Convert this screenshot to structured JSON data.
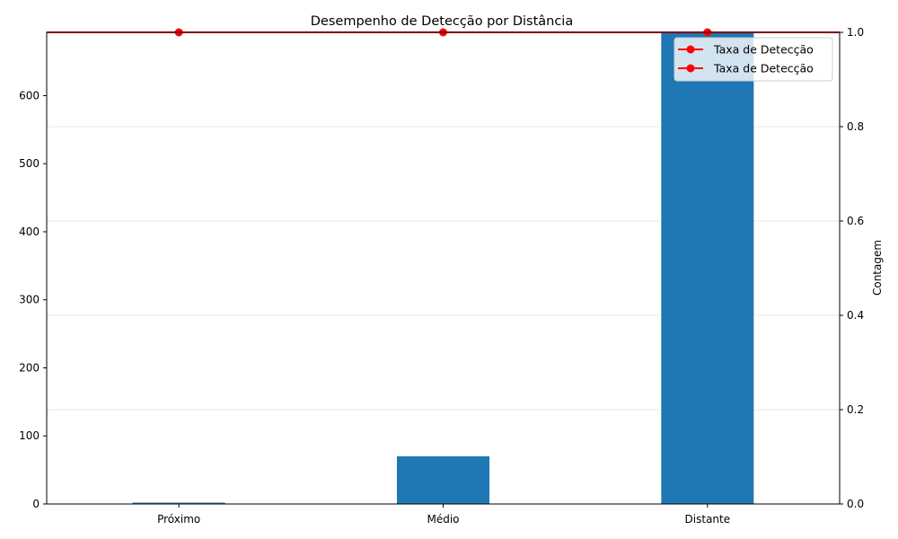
{
  "chart_data": {
    "type": "bar",
    "title": "Desempenho de Detecção por Distância",
    "categories": [
      "Próximo",
      "Médio",
      "Distante"
    ],
    "bar_series": {
      "values": [
        2,
        70,
        693
      ],
      "color": "#1f77b4"
    },
    "line_series": {
      "name": "Taxa de Detecção",
      "values": [
        1.0,
        1.0,
        1.0
      ],
      "color": "#ff0000"
    },
    "left_axis": {
      "label": "",
      "lim": [
        0,
        693
      ],
      "ticks": [
        0,
        100,
        200,
        300,
        400,
        500,
        600
      ]
    },
    "right_axis": {
      "label": "Contagem",
      "lim": [
        0.0,
        1.0
      ],
      "ticks": [
        "0.0",
        "0.2",
        "0.4",
        "0.6",
        "0.8",
        "1.0"
      ]
    },
    "legend": {
      "placement": "top-right",
      "entries": [
        "Taxa de Detecção",
        "Taxa de Detecção"
      ]
    },
    "grid": "horizontal-light"
  }
}
